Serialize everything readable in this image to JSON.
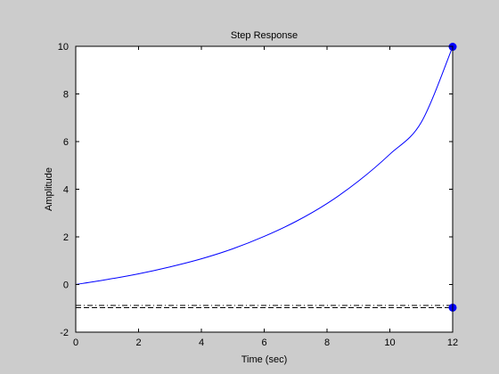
{
  "chart_data": {
    "type": "line",
    "title": "Step Response",
    "xlabel": "Time (sec)",
    "ylabel": "Amplitude",
    "xlim": [
      0,
      12
    ],
    "ylim": [
      -2,
      10
    ],
    "xticks": [
      0,
      2,
      4,
      6,
      8,
      10,
      12
    ],
    "yticks": [
      -2,
      0,
      2,
      4,
      6,
      8,
      10
    ],
    "grid": false,
    "series": [
      {
        "style": "solid",
        "color": "#0000ff",
        "x": [
          0,
          1,
          2,
          3,
          4,
          5,
          6,
          7,
          8,
          9,
          10,
          11,
          12
        ],
        "y": [
          0,
          0.21,
          0.45,
          0.74,
          1.08,
          1.5,
          2.02,
          2.64,
          3.4,
          4.34,
          5.47,
          6.81,
          9.98
        ]
      }
    ],
    "reference_lines": [
      {
        "y": -0.88,
        "style": "dash-dot",
        "color": "#000000"
      },
      {
        "y": -0.97,
        "style": "dashed",
        "color": "#000000"
      },
      {
        "x": 12,
        "style": "dash-dot",
        "color": "#000000"
      }
    ],
    "markers": [
      {
        "x": 12,
        "y": 9.98,
        "color": "#0000ff"
      },
      {
        "x": 12,
        "y": -0.97,
        "color": "#0000ff"
      }
    ],
    "colors": {
      "figure_background": "#cccccc",
      "axes_background": "#ffffff",
      "line": "#0000ff"
    }
  }
}
